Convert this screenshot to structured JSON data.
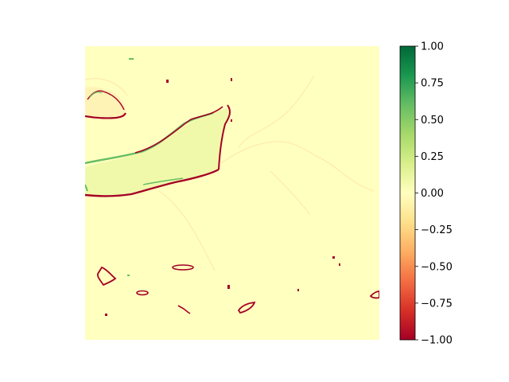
{
  "chart_data": {
    "type": "heatmap",
    "title": "",
    "xlabel": "",
    "ylabel": "",
    "axes_visible": false,
    "colormap": "RdYlGn",
    "colormap_stops": [
      "#a50026",
      "#d73027",
      "#f46d43",
      "#fdae61",
      "#fee08b",
      "#ffffbf",
      "#d9ef8b",
      "#a6d96a",
      "#66bd63",
      "#1a9850",
      "#006837"
    ],
    "background_value": 0.0,
    "background_color": "#ffffbf",
    "value_range": [
      -1.0,
      1.0
    ],
    "colorbar": {
      "position": "right",
      "ticks": [
        1.0,
        0.75,
        0.5,
        0.25,
        0.0,
        -0.25,
        -0.5,
        -0.75,
        -1.0
      ],
      "tick_labels": [
        "1.00",
        "0.75",
        "0.50",
        "0.25",
        "0.00",
        "−0.25",
        "−0.50",
        "−0.75",
        "−1.00"
      ]
    },
    "features": [
      {
        "name": "lake-fill",
        "value": 0.08
      },
      {
        "name": "lake-north-shore",
        "value": 0.6
      },
      {
        "name": "lake-south-shore",
        "value": -1.0
      },
      {
        "name": "upper-left-lake-ring",
        "value": -1.0
      },
      {
        "name": "small-ponds",
        "value": -1.0
      }
    ]
  }
}
